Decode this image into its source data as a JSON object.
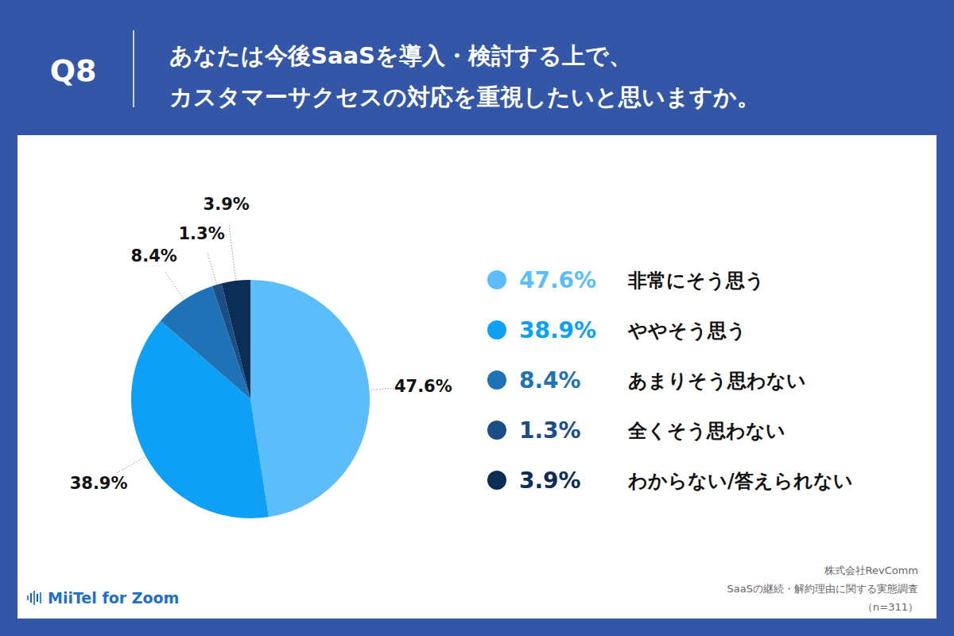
{
  "chart_data": {
    "type": "pie",
    "question_number": "Q8",
    "title": [
      "あなたは今後SaaSを導入・検討する上で、",
      "カスタマーサクセスの対応を重視したいと思いますか。"
    ],
    "categories": [
      "非常にそう思う",
      "ややそう思う",
      "あまりそう思わない",
      "全くそう思わない",
      "わからない/答えられない"
    ],
    "values": [
      47.6,
      38.9,
      8.4,
      1.3,
      3.9
    ],
    "value_labels": [
      "47.6%",
      "38.9%",
      "8.4%",
      "1.3%",
      "3.9%"
    ],
    "colors": [
      "#5bbdf9",
      "#0ea0f5",
      "#1f72b6",
      "#1b4e86",
      "#0c2d56"
    ],
    "data_labels": true,
    "legend": "right",
    "source": [
      "株式会社RevComm",
      "SaaSの継続・解約理由に関する実態調査",
      "（n=311）"
    ],
    "logo": "MiiTel for Zoom"
  }
}
